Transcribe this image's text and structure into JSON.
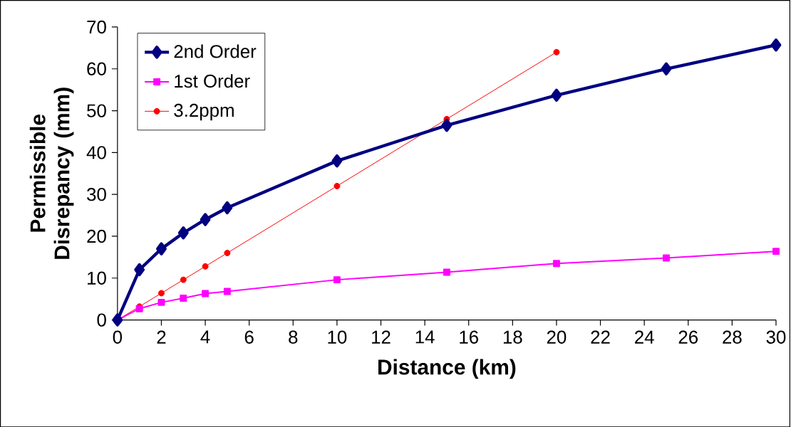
{
  "chart_data": {
    "type": "line",
    "xlabel": "Distance (km)",
    "ylabel": "Permissible Disrepancy (mm)",
    "x": [
      0,
      1,
      2,
      3,
      4,
      5,
      10,
      15,
      20,
      25,
      30
    ],
    "series": [
      {
        "name": "2nd Order",
        "color": "#000080",
        "marker": "diamond",
        "values": [
          0,
          12,
          17,
          20.8,
          24,
          26.8,
          38,
          46.5,
          53.7,
          60,
          65.7
        ]
      },
      {
        "name": "1st Order",
        "color": "#ff00ff",
        "marker": "square",
        "values": [
          0,
          2.7,
          4.2,
          5.2,
          6.3,
          6.8,
          9.6,
          11.4,
          13.5,
          14.8,
          16.4
        ]
      },
      {
        "name": "3.2ppm",
        "color": "#ff0000",
        "marker": "circle",
        "values": [
          0,
          3.2,
          6.4,
          9.6,
          12.8,
          16,
          32,
          48,
          64,
          null,
          null
        ]
      }
    ],
    "xlim": [
      0,
      30
    ],
    "xticks": [
      0,
      2,
      4,
      6,
      8,
      10,
      12,
      14,
      16,
      18,
      20,
      22,
      24,
      26,
      28,
      30
    ],
    "ylim": [
      0,
      70
    ],
    "yticks": [
      0,
      10,
      20,
      30,
      40,
      50,
      60,
      70
    ],
    "grid": false,
    "legend": "top left"
  }
}
